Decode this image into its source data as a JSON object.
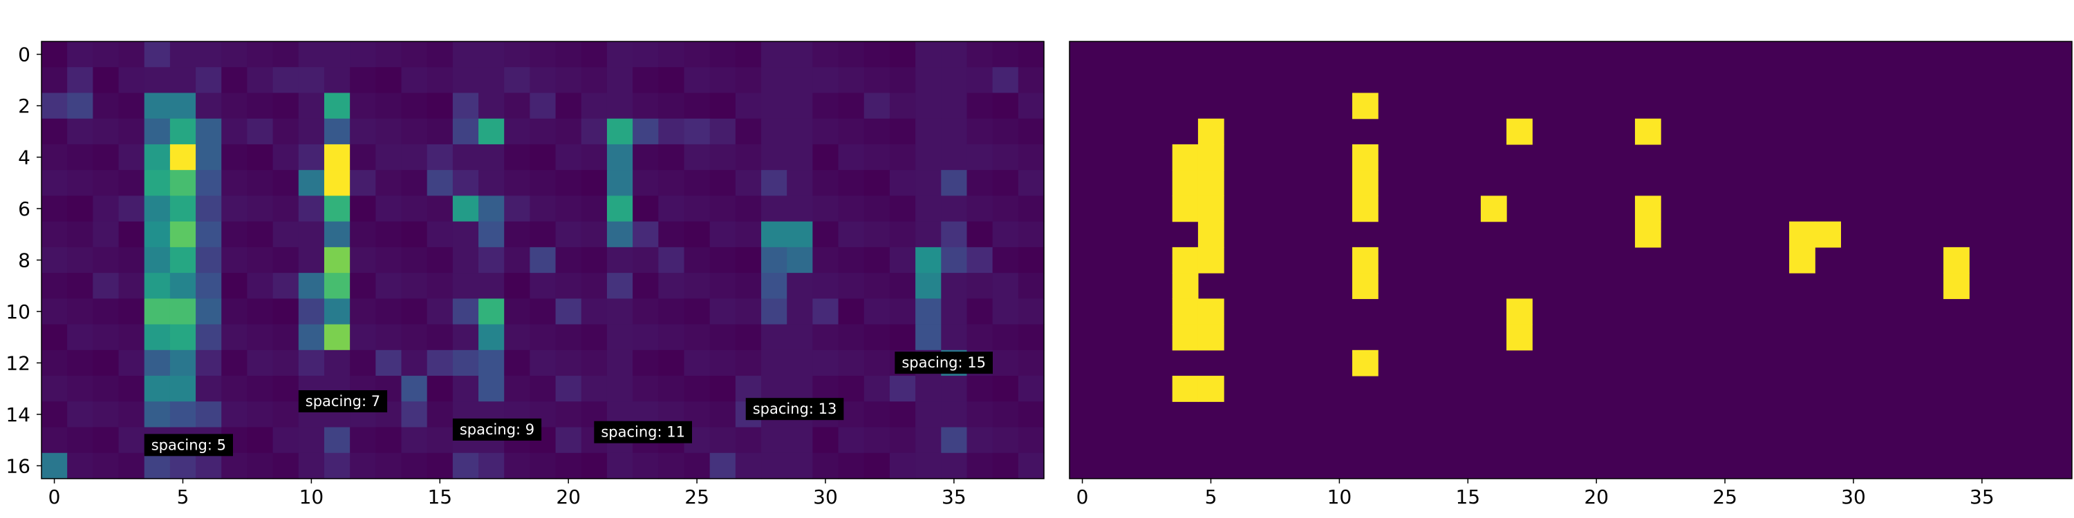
{
  "chart_data": [
    {
      "type": "heatmap",
      "colormap": "viridis",
      "n_rows": 17,
      "n_cols": 39,
      "x_ticks": [
        0,
        5,
        10,
        15,
        20,
        25,
        30,
        35
      ],
      "y_ticks": [
        0,
        2,
        4,
        6,
        8,
        10,
        12,
        14,
        16
      ],
      "value_range": [
        0,
        1
      ],
      "dense_bands": [
        {
          "col": 4,
          "row_values": [
            0.15,
            0.05,
            0.42,
            0.32,
            0.55,
            0.6,
            0.45,
            0.5,
            0.45,
            0.55,
            0.7,
            0.55,
            0.3,
            0.45,
            0.3,
            0.05,
            0.2
          ]
        },
        {
          "col": 5,
          "row_values": [
            0.05,
            0.05,
            0.42,
            0.6,
            1.0,
            0.7,
            0.6,
            0.75,
            0.6,
            0.45,
            0.7,
            0.6,
            0.4,
            0.45,
            0.25,
            0.05,
            0.15
          ]
        },
        {
          "col": 6,
          "row_values": [
            0.05,
            0.15,
            0.05,
            0.3,
            0.3,
            0.25,
            0.2,
            0.25,
            0.2,
            0.25,
            0.3,
            0.2,
            0.1,
            0.05,
            0.2,
            0.05,
            0.1
          ]
        },
        {
          "col": 11,
          "row_values": [
            0.05,
            0.05,
            0.6,
            0.28,
            1.0,
            1.0,
            0.65,
            0.35,
            0.8,
            0.7,
            0.42,
            0.8,
            0.05,
            0.05,
            0.05,
            0.2,
            0.1
          ]
        },
        {
          "col": 10,
          "row_values": [
            0.05,
            0.05,
            0.05,
            0.05,
            0.1,
            0.4,
            0.1,
            0.05,
            0.05,
            0.35,
            0.2,
            0.3,
            0.1,
            0.05,
            0.05,
            0.05,
            0.05
          ]
        },
        {
          "col": 17,
          "row_values": [
            0.05,
            0.05,
            0.05,
            0.6,
            0.05,
            0.05,
            0.3,
            0.25,
            0.1,
            0.05,
            0.65,
            0.45,
            0.25,
            0.25,
            0.05,
            0.05,
            0.1
          ]
        },
        {
          "col": 16,
          "row_values": [
            0.05,
            0.05,
            0.15,
            0.2,
            0.05,
            0.1,
            0.55,
            0.05,
            0.05,
            0.05,
            0.2,
            0.05,
            0.2,
            0.05,
            0.05,
            0.05,
            0.15
          ]
        },
        {
          "col": 22,
          "row_values": [
            0.05,
            0.05,
            0.05,
            0.6,
            0.4,
            0.4,
            0.6,
            0.35,
            0.05,
            0.15,
            0.05,
            0.05,
            0.05,
            0.05,
            0.05,
            0.05,
            0.05
          ]
        },
        {
          "col": 28,
          "row_values": [
            0.05,
            0.05,
            0.05,
            0.05,
            0.05,
            0.05,
            0.05,
            0.45,
            0.3,
            0.25,
            0.2,
            0.05,
            0.05,
            0.05,
            0.05,
            0.05,
            0.05
          ]
        },
        {
          "col": 29,
          "row_values": [
            0.05,
            0.05,
            0.05,
            0.05,
            0.05,
            0.05,
            0.05,
            0.45,
            0.35,
            0.05,
            0.05,
            0.05,
            0.05,
            0.05,
            0.05,
            0.05,
            0.05
          ]
        },
        {
          "col": 34,
          "row_values": [
            0.05,
            0.05,
            0.05,
            0.05,
            0.05,
            0.05,
            0.05,
            0.05,
            0.5,
            0.45,
            0.25,
            0.25,
            0.05,
            0.05,
            0.05,
            0.05,
            0.05
          ]
        },
        {
          "col": 35,
          "row_values": [
            0.05,
            0.05,
            0.05,
            0.05,
            0.05,
            0.2,
            0.05,
            0.15,
            0.2,
            0.05,
            0.05,
            0.05,
            0.4,
            0.05,
            0.05,
            0.2,
            0.05
          ]
        }
      ],
      "scattered_cells": [
        [
          0,
          16,
          0.4
        ],
        [
          1,
          1,
          0.1
        ],
        [
          1,
          2,
          0.2
        ],
        [
          0,
          2,
          0.15
        ],
        [
          4,
          0,
          0.12
        ],
        [
          6,
          1,
          0.1
        ],
        [
          9,
          1,
          0.08
        ],
        [
          10,
          1,
          0.08
        ],
        [
          3,
          6,
          0.08
        ],
        [
          2,
          7,
          0.05
        ],
        [
          2,
          9,
          0.08
        ],
        [
          14,
          13,
          0.25
        ],
        [
          14,
          14,
          0.15
        ],
        [
          15,
          4,
          0.1
        ],
        [
          15,
          5,
          0.2
        ],
        [
          15,
          12,
          0.15
        ],
        [
          18,
          1,
          0.08
        ],
        [
          19,
          2,
          0.1
        ],
        [
          18,
          6,
          0.08
        ],
        [
          19,
          8,
          0.2
        ],
        [
          20,
          10,
          0.15
        ],
        [
          20,
          13,
          0.1
        ],
        [
          20,
          15,
          0.08
        ],
        [
          21,
          3,
          0.08
        ],
        [
          23,
          3,
          0.2
        ],
        [
          24,
          3,
          0.1
        ],
        [
          25,
          3,
          0.12
        ],
        [
          26,
          3,
          0.08
        ],
        [
          23,
          7,
          0.12
        ],
        [
          24,
          8,
          0.1
        ],
        [
          26,
          16,
          0.15
        ],
        [
          27,
          14,
          0.12
        ],
        [
          27,
          13,
          0.08
        ],
        [
          28,
          5,
          0.15
        ],
        [
          30,
          10,
          0.12
        ],
        [
          33,
          13,
          0.12
        ],
        [
          32,
          2,
          0.08
        ],
        [
          37,
          1,
          0.1
        ],
        [
          37,
          9,
          0.05
        ],
        [
          36,
          8,
          0.12
        ],
        [
          8,
          3,
          0.08
        ],
        [
          9,
          9,
          0.08
        ],
        [
          13,
          4,
          0.05
        ],
        [
          12,
          5,
          0.08
        ],
        [
          13,
          12,
          0.15
        ],
        [
          12,
          14,
          0.05
        ]
      ],
      "annotations": [
        {
          "text": "spacing: 5",
          "x": 4,
          "y": 15.8
        },
        {
          "text": "spacing: 7",
          "x": 10,
          "y": 14.1
        },
        {
          "text": "spacing: 9",
          "x": 16,
          "y": 15.2
        },
        {
          "text": "spacing: 11",
          "x": 21.5,
          "y": 15.3
        },
        {
          "text": "spacing: 13",
          "x": 27.4,
          "y": 14.4
        },
        {
          "text": "spacing: 15",
          "x": 33.2,
          "y": 12.6
        }
      ]
    },
    {
      "type": "heatmap",
      "colormap": "binary-viridis",
      "n_rows": 17,
      "n_cols": 39,
      "x_ticks": [
        0,
        5,
        10,
        15,
        20,
        25,
        30,
        35
      ],
      "y_ticks": [],
      "value_range": [
        0,
        1
      ],
      "on_cells": [
        [
          5,
          3
        ],
        [
          4,
          4
        ],
        [
          5,
          4
        ],
        [
          4,
          5
        ],
        [
          5,
          5
        ],
        [
          4,
          6
        ],
        [
          5,
          6
        ],
        [
          5,
          7
        ],
        [
          4,
          8
        ],
        [
          5,
          8
        ],
        [
          4,
          9
        ],
        [
          4,
          10
        ],
        [
          5,
          10
        ],
        [
          4,
          11
        ],
        [
          5,
          11
        ],
        [
          4,
          13
        ],
        [
          5,
          13
        ],
        [
          11,
          2
        ],
        [
          11,
          4
        ],
        [
          11,
          5
        ],
        [
          11,
          6
        ],
        [
          11,
          8
        ],
        [
          11,
          9
        ],
        [
          11,
          12
        ],
        [
          17,
          3
        ],
        [
          16,
          6
        ],
        [
          17,
          10
        ],
        [
          17,
          11
        ],
        [
          22,
          3
        ],
        [
          22,
          6
        ],
        [
          22,
          7
        ],
        [
          28,
          7
        ],
        [
          29,
          7
        ],
        [
          28,
          8
        ],
        [
          34,
          8
        ],
        [
          34,
          9
        ]
      ]
    }
  ],
  "colors": {
    "viridis_low": "#440154",
    "viridis_high": "#fde725",
    "annotation_bg": "#000000"
  }
}
